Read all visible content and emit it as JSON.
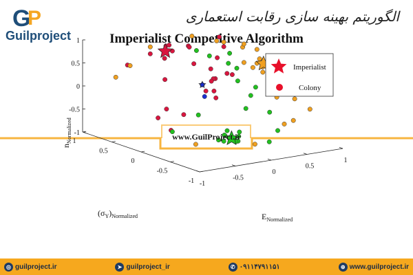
{
  "brand": {
    "logo_mark_g": "G",
    "logo_mark_p": "P",
    "logo_text": "Guilproject",
    "persian_heading": "الگوریتم بهینه سازی رقابت استعماری",
    "watermark": "www.GuilProject.ir"
  },
  "footer": {
    "items": [
      {
        "icon": "instagram-icon",
        "text": "guilproject.ir"
      },
      {
        "icon": "telegram-icon",
        "text": "guilproject_ir"
      },
      {
        "icon": "phone-icon",
        "text": "۰۹۱۱۴۷۹۱۱۵۱"
      },
      {
        "icon": "globe-icon",
        "text": "www.guilproject.ir"
      }
    ]
  },
  "colors": {
    "imperialist": "#e8102a",
    "colony": "#e8102a",
    "red_empire": "#d9163f",
    "orange_empire": "#f0a020",
    "green_empire": "#22c020",
    "blue_empire": "#1a2fd0",
    "band": "#f6a81e"
  },
  "chart_data": {
    "type": "scatter",
    "title": "Imperialist Competitive Algorithm",
    "xlabel": "E",
    "xlabel_sub": "Normalized",
    "ylabel": "(σ",
    "ylabel_sub1": "Y",
    "ylabel_close": ")",
    "ylabel_sub2": "Normalized",
    "zlabel": "n",
    "zlabel_sub": "Normalized",
    "xlim": [
      -1,
      1
    ],
    "ylim": [
      -1,
      1
    ],
    "zlim": [
      -1,
      1
    ],
    "x_ticks": [
      "-1",
      "-0.5",
      "0",
      "0.5",
      "1"
    ],
    "y_ticks": [
      "-1",
      "-0.5",
      "0",
      "0.5",
      "1"
    ],
    "z_ticks": [
      "-1",
      "-0.5",
      "0",
      "0.5",
      "1"
    ],
    "legend": {
      "placement": "top-right",
      "entries": [
        {
          "label": "Imperialist",
          "marker": "star"
        },
        {
          "label": "Colony",
          "marker": "circle"
        }
      ]
    },
    "imperialists": [
      {
        "empire": "red",
        "x": -0.05,
        "y": 0.75,
        "z": 0.62
      },
      {
        "empire": "orange",
        "x": 0.75,
        "y": 0.05,
        "z": 0.45
      },
      {
        "empire": "green",
        "x": 0.1,
        "y": -0.2,
        "z": -0.9
      },
      {
        "empire": "blue",
        "x": 0.1,
        "y": 0.3,
        "z": 0.05
      }
    ],
    "series": [
      {
        "empire": "red",
        "points": [
          [
            -0.7,
            0.6,
            0.55
          ],
          [
            -0.3,
            0.7,
            0.65
          ],
          [
            -0.05,
            0.75,
            0.62
          ],
          [
            0.0,
            0.8,
            0.7
          ],
          [
            -0.1,
            0.7,
            0.5
          ],
          [
            0.05,
            0.75,
            0.6
          ],
          [
            -0.2,
            0.5,
            0.9
          ],
          [
            0.15,
            0.6,
            0.75
          ],
          [
            -0.4,
            0.3,
            -0.35
          ],
          [
            -0.6,
            0.2,
            -0.45
          ],
          [
            -0.2,
            0.25,
            -0.5
          ],
          [
            -0.5,
            0.1,
            -0.7
          ],
          [
            0.2,
            0.2,
            0.2
          ],
          [
            0.1,
            0.1,
            0.0
          ],
          [
            0.3,
            0.4,
            0.3
          ],
          [
            -0.1,
            0.2,
            0.6
          ],
          [
            0.4,
            0.3,
            0.8
          ],
          [
            0.5,
            0.5,
            0.9
          ],
          [
            0.2,
            0.0,
            0.4
          ],
          [
            0.35,
            0.35,
            0.55
          ],
          [
            -0.3,
            0.45,
            0.2
          ],
          [
            0.15,
            0.3,
            -0.1
          ],
          [
            0.6,
            0.4,
            0.1
          ],
          [
            0.0,
            0.4,
            0.85
          ],
          [
            -0.2,
            -0.3,
            0.1
          ],
          [
            0.05,
            0.05,
            0.3
          ],
          [
            -0.1,
            -0.1,
            0.35
          ]
        ]
      },
      {
        "empire": "orange",
        "points": [
          [
            -0.7,
            0.8,
            0.2
          ],
          [
            -0.5,
            0.8,
            0.4
          ],
          [
            -0.3,
            0.7,
            0.8
          ],
          [
            0.7,
            0.1,
            0.45
          ],
          [
            0.75,
            0.05,
            0.5
          ],
          [
            0.8,
            0.0,
            0.4
          ],
          [
            0.7,
            0.0,
            0.3
          ],
          [
            0.78,
            0.1,
            0.35
          ],
          [
            0.72,
            0.08,
            0.55
          ],
          [
            0.85,
            0.1,
            0.42
          ],
          [
            0.66,
            0.12,
            0.36
          ],
          [
            0.9,
            0.05,
            0.52
          ],
          [
            0.6,
            0.2,
            0.45
          ],
          [
            0.95,
            0.1,
            0.3
          ],
          [
            0.4,
            0.3,
            0.9
          ],
          [
            0.5,
            0.1,
            0.85
          ],
          [
            0.65,
            -0.3,
            -0.1
          ],
          [
            0.9,
            -0.3,
            -0.2
          ],
          [
            0.95,
            -0.5,
            -0.35
          ],
          [
            0.8,
            -0.4,
            -0.6
          ],
          [
            0.3,
            0.3,
            0.95
          ],
          [
            0.2,
            0.6,
            0.95
          ],
          [
            -0.4,
            -0.2,
            -0.9
          ],
          [
            0.1,
            -0.6,
            -0.85
          ],
          [
            0.55,
            -0.55,
            -0.55
          ],
          [
            0.7,
            0.1,
            0.75
          ],
          [
            0.6,
            0.2,
            0.85
          ]
        ]
      },
      {
        "empire": "green",
        "points": [
          [
            0.1,
            -0.2,
            -0.9
          ],
          [
            0.05,
            -0.15,
            -0.85
          ],
          [
            0.15,
            -0.25,
            -0.95
          ],
          [
            0.0,
            -0.2,
            -0.8
          ],
          [
            0.2,
            -0.2,
            -0.88
          ],
          [
            0.08,
            -0.3,
            -0.92
          ],
          [
            0.12,
            -0.1,
            -0.78
          ],
          [
            -0.05,
            -0.25,
            -0.9
          ],
          [
            0.25,
            -0.15,
            -0.82
          ],
          [
            0.0,
            -0.1,
            -0.95
          ],
          [
            0.3,
            0.1,
            0.55
          ],
          [
            0.4,
            0.2,
            0.7
          ],
          [
            0.35,
            0.0,
            0.2
          ],
          [
            0.5,
            0.2,
            0.35
          ],
          [
            0.45,
            -0.1,
            -0.1
          ],
          [
            0.3,
            -0.2,
            -0.3
          ],
          [
            -0.2,
            0.0,
            -0.4
          ],
          [
            -0.4,
            0.2,
            -0.8
          ],
          [
            0.3,
            -0.6,
            -0.85
          ],
          [
            0.5,
            -0.5,
            -0.7
          ],
          [
            0.2,
            0.3,
            0.65
          ],
          [
            0.1,
            0.4,
            0.75
          ],
          [
            0.6,
            0.0,
            0.0
          ],
          [
            -0.1,
            -0.4,
            -0.75
          ],
          [
            0.55,
            -0.3,
            -0.4
          ]
        ]
      },
      {
        "empire": "blue",
        "points": [
          [
            0.1,
            0.3,
            0.05
          ],
          [
            0.05,
            0.2,
            -0.15
          ]
        ]
      }
    ]
  }
}
